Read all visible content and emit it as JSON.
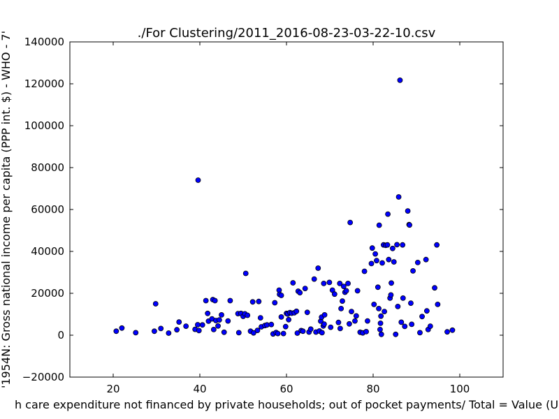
{
  "chart_data": {
    "type": "scatter",
    "title": "./For Clustering/2011_2016-08-23-03-22-10.csv",
    "xlabel": "h care expenditure not financed by private households; out of pocket payments/ Total = Value (U",
    "ylabel": "'1954N: Gross national income per capita (PPP int. $) - WHO - 7'",
    "xlim": [
      10,
      110
    ],
    "ylim": [
      -20000,
      140000
    ],
    "x_ticks": [
      "20",
      "40",
      "60",
      "80",
      "100"
    ],
    "y_ticks": [
      "−20000",
      "0",
      "20000",
      "40000",
      "60000",
      "80000",
      "100000",
      "120000",
      "140000"
    ],
    "marker_color": "#0000ff",
    "grid": false,
    "points": [
      [
        20.7,
        1900
      ],
      [
        22,
        3400
      ],
      [
        25.2,
        1200
      ],
      [
        29.5,
        1900
      ],
      [
        29.8,
        15000
      ],
      [
        31,
        3200
      ],
      [
        32.8,
        1000
      ],
      [
        34.7,
        2600
      ],
      [
        35.2,
        6300
      ],
      [
        36.8,
        4300
      ],
      [
        38.9,
        2800
      ],
      [
        39.5,
        5000
      ],
      [
        39.6,
        74000
      ],
      [
        39.8,
        2200
      ],
      [
        40.6,
        4900
      ],
      [
        41.4,
        16500
      ],
      [
        41.8,
        10400
      ],
      [
        42,
        6700
      ],
      [
        42.8,
        7800
      ],
      [
        43,
        17000
      ],
      [
        43.2,
        2700
      ],
      [
        43.5,
        16500
      ],
      [
        43.7,
        7000
      ],
      [
        44.2,
        4400
      ],
      [
        44.5,
        7300
      ],
      [
        45,
        9700
      ],
      [
        45.6,
        1400
      ],
      [
        46.5,
        6800
      ],
      [
        47,
        16500
      ],
      [
        48.8,
        10300
      ],
      [
        49,
        1200
      ],
      [
        49.5,
        10400
      ],
      [
        50,
        9000
      ],
      [
        50.4,
        10200
      ],
      [
        50.6,
        29500
      ],
      [
        51,
        9500
      ],
      [
        51.7,
        1900
      ],
      [
        52.2,
        15900
      ],
      [
        52.4,
        1100
      ],
      [
        53.3,
        2300
      ],
      [
        53.6,
        16100
      ],
      [
        54,
        8300
      ],
      [
        54.2,
        4000
      ],
      [
        55,
        4600
      ],
      [
        55.5,
        4900
      ],
      [
        56.5,
        5100
      ],
      [
        56.9,
        600
      ],
      [
        57.3,
        15500
      ],
      [
        57.6,
        1300
      ],
      [
        58,
        800
      ],
      [
        58.3,
        21500
      ],
      [
        58.4,
        19500
      ],
      [
        58.8,
        19000
      ],
      [
        58.8,
        8700
      ],
      [
        59.3,
        800
      ],
      [
        59.8,
        4100
      ],
      [
        60,
        10400
      ],
      [
        60.3,
        10100
      ],
      [
        60.5,
        7400
      ],
      [
        60.8,
        10800
      ],
      [
        61.2,
        10500
      ],
      [
        61.5,
        25000
      ],
      [
        61.8,
        10700
      ],
      [
        62.3,
        11400
      ],
      [
        62.5,
        1000
      ],
      [
        62.7,
        21000
      ],
      [
        63.1,
        20300
      ],
      [
        63.4,
        2200
      ],
      [
        63.8,
        1900
      ],
      [
        64.3,
        22300
      ],
      [
        64.8,
        10900
      ],
      [
        65.2,
        1500
      ],
      [
        65.6,
        2900
      ],
      [
        66.4,
        26800
      ],
      [
        66.8,
        1500
      ],
      [
        67.3,
        32000
      ],
      [
        67.6,
        2000
      ],
      [
        67.9,
        6700
      ],
      [
        68.1,
        8600
      ],
      [
        68.2,
        1200
      ],
      [
        68.5,
        4400
      ],
      [
        68.6,
        24700
      ],
      [
        68.7,
        5300
      ],
      [
        68.8,
        9700
      ],
      [
        69.9,
        25200
      ],
      [
        70.2,
        3800
      ],
      [
        70.6,
        21500
      ],
      [
        71.1,
        19600
      ],
      [
        72,
        6100
      ],
      [
        72.3,
        24700
      ],
      [
        72.4,
        3200
      ],
      [
        72.6,
        12700
      ],
      [
        72.9,
        16300
      ],
      [
        73.2,
        23300
      ],
      [
        73.5,
        20500
      ],
      [
        73.8,
        21200
      ],
      [
        74.2,
        24700
      ],
      [
        74.5,
        5400
      ],
      [
        74.7,
        53800
      ],
      [
        75,
        11300
      ],
      [
        75.8,
        6800
      ],
      [
        76.1,
        9200
      ],
      [
        76.4,
        21200
      ],
      [
        77,
        1400
      ],
      [
        77.6,
        1100
      ],
      [
        78,
        30500
      ],
      [
        78.4,
        1700
      ],
      [
        78.7,
        6800
      ],
      [
        79.6,
        34200
      ],
      [
        79.8,
        41600
      ],
      [
        80.2,
        14700
      ],
      [
        80.5,
        38800
      ],
      [
        80.8,
        35600
      ],
      [
        81.1,
        22900
      ],
      [
        81.3,
        12700
      ],
      [
        81.4,
        52500
      ],
      [
        81.6,
        2700
      ],
      [
        81.7,
        5700
      ],
      [
        81.8,
        9100
      ],
      [
        81.9,
        400
      ],
      [
        82.1,
        34500
      ],
      [
        82.4,
        43100
      ],
      [
        82.6,
        11300
      ],
      [
        82.9,
        42900
      ],
      [
        83.3,
        43100
      ],
      [
        83.4,
        57800
      ],
      [
        83.6,
        36100
      ],
      [
        83.9,
        17700
      ],
      [
        84.1,
        19200
      ],
      [
        84.2,
        24900
      ],
      [
        84.5,
        41400
      ],
      [
        84.8,
        35000
      ],
      [
        85.2,
        400
      ],
      [
        85.5,
        43200
      ],
      [
        85.7,
        13700
      ],
      [
        85.9,
        66000
      ],
      [
        86.2,
        121700
      ],
      [
        86.5,
        6200
      ],
      [
        86.8,
        43100
      ],
      [
        86.9,
        17700
      ],
      [
        87.3,
        4200
      ],
      [
        88,
        59300
      ],
      [
        88.3,
        52800
      ],
      [
        88.4,
        52600
      ],
      [
        88.7,
        15300
      ],
      [
        88.9,
        5200
      ],
      [
        89.2,
        30700
      ],
      [
        90.3,
        34700
      ],
      [
        90.8,
        1200
      ],
      [
        91.3,
        8900
      ],
      [
        92.2,
        36100
      ],
      [
        92.4,
        11600
      ],
      [
        92.7,
        2700
      ],
      [
        93.2,
        4300
      ],
      [
        94.2,
        22600
      ],
      [
        94.7,
        43100
      ],
      [
        94.9,
        14700
      ],
      [
        97.1,
        1600
      ],
      [
        98.3,
        2400
      ]
    ]
  }
}
